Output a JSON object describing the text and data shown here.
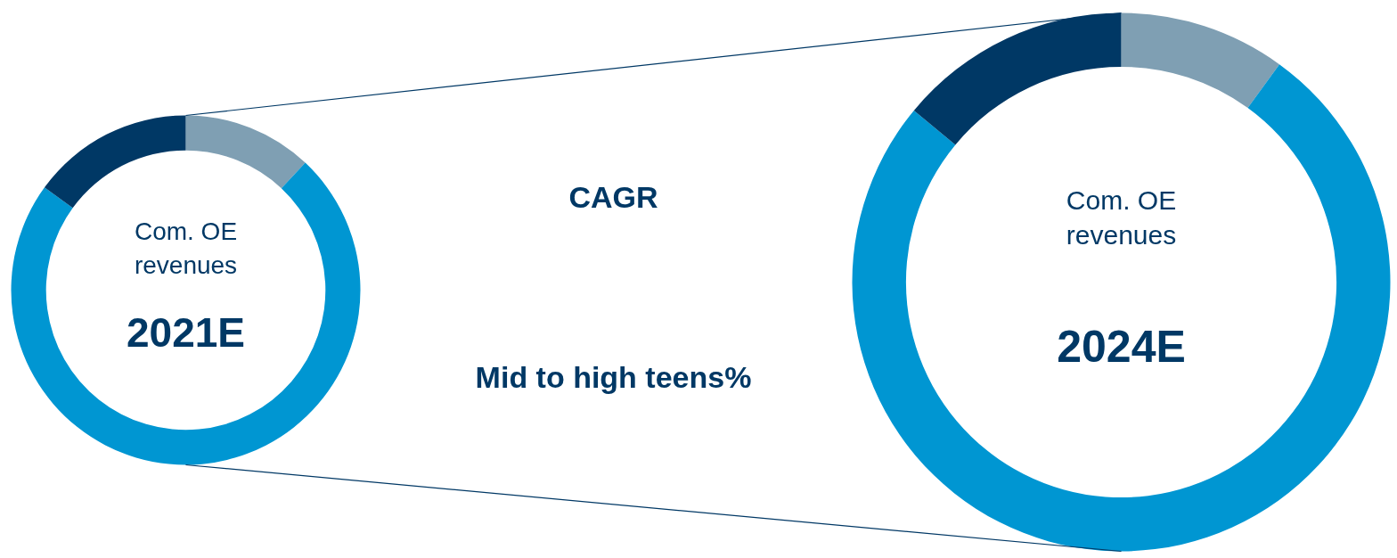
{
  "chart_data": [
    {
      "type": "donut",
      "title": "Com. OE\nrevenues",
      "subtitle": "2021E",
      "categories": [
        null,
        null,
        null
      ],
      "values": [
        12,
        73,
        15
      ],
      "colors": [
        "#7f9fb3",
        "#0096d2",
        "#003865"
      ],
      "annotations": [
        "CAGR",
        "Mid to high teens%"
      ]
    },
    {
      "type": "donut",
      "title": "Com. OE\nrevenues",
      "subtitle": "2024E",
      "categories": [
        null,
        null,
        null
      ],
      "values": [
        10,
        76,
        14
      ],
      "colors": [
        "#7f9fb3",
        "#0096d2",
        "#003865"
      ]
    }
  ]
}
